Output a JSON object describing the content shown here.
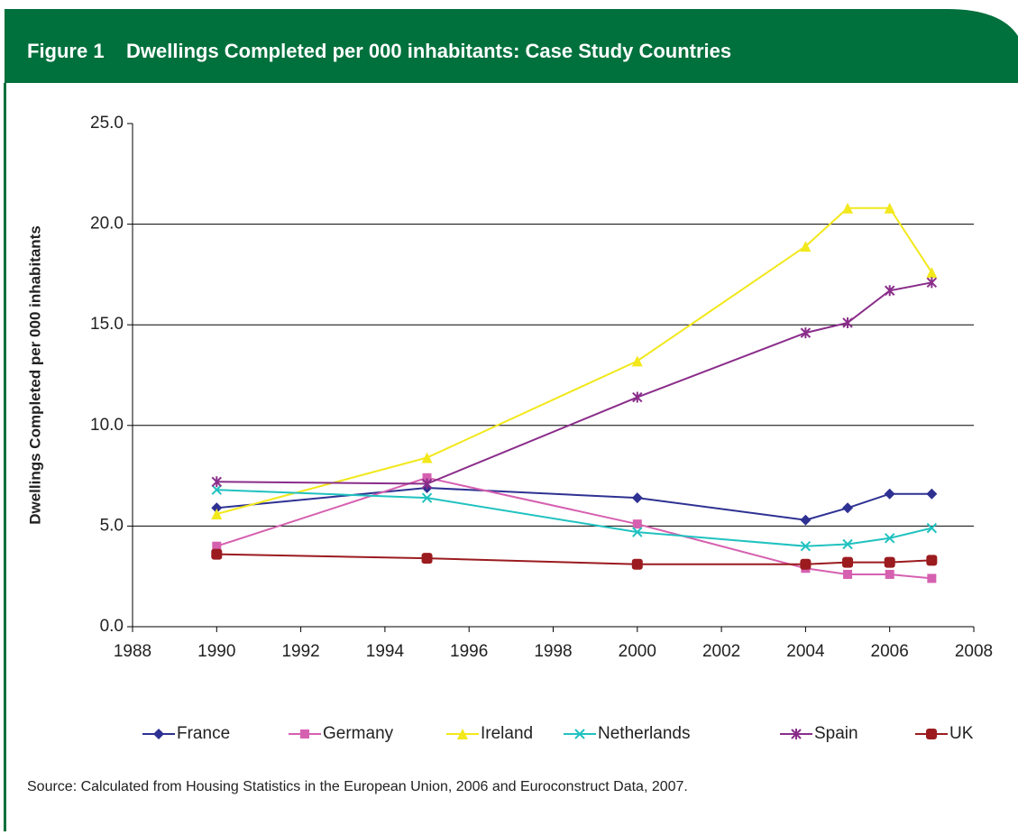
{
  "chart_data": {
    "type": "line",
    "figure_label": "Figure 1",
    "title": "Dwellings Completed per 000 inhabitants: Case Study Countries",
    "y_label": "Dwellings Completed per 000 inhabitants",
    "source": "Source: Calculated from Housing Statistics in the European Union, 2006 and Euroconstruct Data, 2007.",
    "x": [
      1990,
      1995,
      2000,
      2004,
      2005,
      2006,
      2007
    ],
    "xlim": [
      1988,
      2008
    ],
    "xticks": [
      1988,
      1990,
      1992,
      1994,
      1996,
      1998,
      2000,
      2002,
      2004,
      2006,
      2008
    ],
    "ylim": [
      0,
      25
    ],
    "yticks": [
      {
        "value": 0,
        "label": "0.0"
      },
      {
        "value": 5,
        "label": "5.0"
      },
      {
        "value": 10,
        "label": "10.0"
      },
      {
        "value": 15,
        "label": "15.0"
      },
      {
        "value": 20,
        "label": "20.0"
      },
      {
        "value": 25,
        "label": "25.0"
      }
    ],
    "grid": true,
    "legend": "bottom",
    "series": [
      {
        "name": "France",
        "color": "#2e3192",
        "marker": "diamond",
        "values": [
          5.9,
          6.9,
          6.4,
          5.3,
          5.9,
          6.6,
          6.6
        ]
      },
      {
        "name": "Germany",
        "color": "#d660b0",
        "marker": "square",
        "values": [
          4.0,
          7.4,
          5.1,
          2.9,
          2.6,
          2.6,
          2.4
        ]
      },
      {
        "name": "Ireland",
        "color": "#f2e81c",
        "marker": "triangle",
        "values": [
          5.6,
          8.4,
          13.2,
          18.9,
          20.8,
          20.8,
          17.6
        ]
      },
      {
        "name": "Netherlands",
        "color": "#20c2c0",
        "marker": "cross",
        "values": [
          6.8,
          6.4,
          4.7,
          4.0,
          4.1,
          4.4,
          4.9
        ]
      },
      {
        "name": "Spain",
        "color": "#8a2d8a",
        "marker": "star",
        "values": [
          7.2,
          7.1,
          11.4,
          14.6,
          15.1,
          16.7,
          17.1
        ]
      },
      {
        "name": "UK",
        "color": "#9b1b1f",
        "marker": "circle",
        "values": [
          3.6,
          3.4,
          3.1,
          3.1,
          3.2,
          3.2,
          3.3
        ]
      }
    ]
  }
}
